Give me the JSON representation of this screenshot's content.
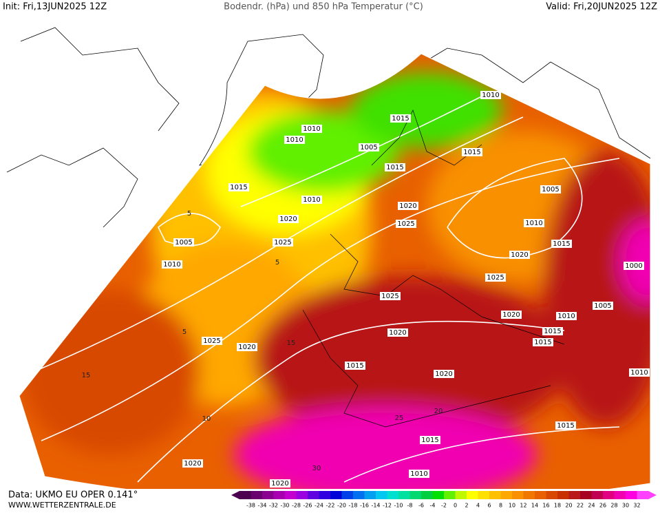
{
  "header": {
    "init": "Init: Fri,13JUN2025 12Z",
    "title": "Bodendr. (hPa) und 850 hPa Temperatur (°C)",
    "valid": "Valid: Fri,20JUN2025 12Z"
  },
  "footer": {
    "data": "Data: UKMO EU OPER 0.141°",
    "site": "WWW.WETTERZENTRALE.DE"
  },
  "colorbar": {
    "labels": [
      -38,
      -34,
      -32,
      -30,
      -28,
      -26,
      -24,
      -22,
      -20,
      -18,
      -16,
      -14,
      -12,
      -10,
      -8,
      -6,
      -4,
      -2,
      0,
      2,
      4,
      6,
      8,
      10,
      12,
      14,
      16,
      18,
      20,
      22,
      24,
      26,
      28,
      30,
      32
    ],
    "colors": [
      "#4b0050",
      "#6a006e",
      "#8a008f",
      "#a800b0",
      "#c400d0",
      "#9a00e0",
      "#6000e0",
      "#3000e0",
      "#0000d8",
      "#0040e8",
      "#0070f0",
      "#00a0f0",
      "#00c8f0",
      "#00e0d0",
      "#00e0a0",
      "#00d870",
      "#00d040",
      "#00e000",
      "#60f000",
      "#c0f800",
      "#ffff00",
      "#ffe000",
      "#ffc000",
      "#ffa800",
      "#f89000",
      "#f07800",
      "#e86000",
      "#d84800",
      "#c83000",
      "#b81818",
      "#a80020",
      "#c00050",
      "#e00080",
      "#f000b0",
      "#ff00e0",
      "#ff40ff"
    ]
  },
  "isobar_labels": [
    "1010",
    "1015",
    "1010",
    "1010",
    "1005",
    "1015",
    "1015",
    "1015",
    "1010",
    "1005",
    "1020",
    "1020",
    "1025",
    "1010",
    "1005",
    "1025",
    "1015",
    "1020",
    "1010",
    "1000",
    "1025",
    "1025",
    "1005",
    "1020",
    "1010",
    "1015",
    "1020",
    "1015",
    "1025",
    "1020",
    "1015",
    "1010",
    "1020",
    "1015",
    "1015",
    "1020",
    "1010",
    "1020"
  ],
  "isotherm_labels": [
    "5",
    "5",
    "5",
    "10",
    "15",
    "15",
    "20",
    "25",
    "30"
  ]
}
